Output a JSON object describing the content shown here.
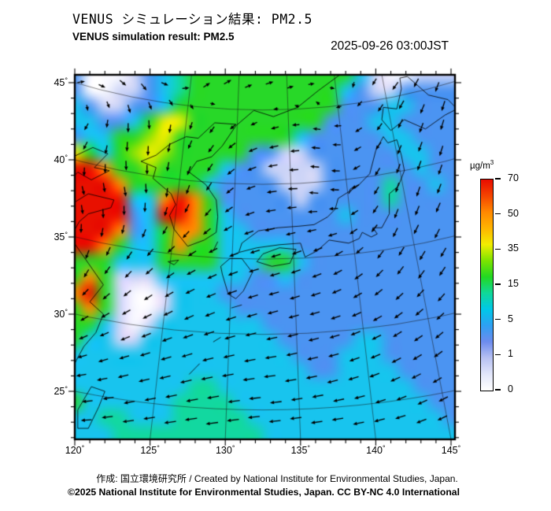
{
  "header": {
    "title_ja": "VENUS シミュレーション結果: PM2.5",
    "title_en": "VENUS simulation result: PM2.5",
    "timestamp": "2025-09-26 03:00JST"
  },
  "axes": {
    "lat_labels": [
      "45",
      "40",
      "35",
      "30",
      "25"
    ],
    "lon_labels": [
      "120",
      "125",
      "130",
      "135",
      "140",
      "145"
    ],
    "degree_symbol": "°"
  },
  "colorbar": {
    "unit_base": "µg/m",
    "unit_exp": "3",
    "tick_labels": [
      "70",
      "50",
      "35",
      "15",
      "5",
      "1",
      "0"
    ],
    "stops_bottom_to_top": [
      "#ffffff",
      "#e2e6fa",
      "#b7c1f2",
      "#6d8cee",
      "#2ea0f2",
      "#00c8e8",
      "#10d898",
      "#22d822",
      "#7ce400",
      "#f2ee00",
      "#ffb400",
      "#ff8800",
      "#f44400",
      "#e80c00"
    ]
  },
  "footer": {
    "line1": "作成: 国立環境研究所 / Created by National Institute for Environmental Studies, Japan.",
    "line2": "©2025 National Institute for Environmental Studies, Japan. CC BY-NC 4.0 International"
  },
  "chart_data": {
    "type": "heatmap",
    "title": "VENUS simulation result: PM2.5",
    "units": "µg/m3",
    "colorbar_values": [
      0,
      1,
      5,
      15,
      35,
      50,
      70
    ],
    "lon_range": [
      120,
      145.5
    ],
    "lat_range": [
      22,
      45.5
    ],
    "grid": {
      "lon_start": 120,
      "lon_step": 1,
      "lat_start": 45.5,
      "lat_step": -1,
      "level_values": {
        "W": 0.2,
        "L": 0.8,
        "P": 1.5,
        "B": 2.5,
        "C": 6,
        "T": 10,
        "G": 18,
        "H": 28,
        "Y": 40,
        "O": 55,
        "R": 72
      },
      "level_colors": {
        "W": "#fafaff",
        "L": "#ccd4f7",
        "P": "#8fa6f0",
        "B": "#4b94f2",
        "C": "#18c4ee",
        "T": "#12d8a0",
        "G": "#28d828",
        "H": "#9ce400",
        "Y": "#f4ee00",
        "O": "#ff8c00",
        "R": "#e81000"
      },
      "rows": [
        "BWWWLBCTGGGGGGGGGGGCLWWLLL",
        "BWWLLBCTGGGGGGGGGGCBLLBBBB",
        "CBLLBBCGGGGGGGGGGGBBBCCBBB",
        "CCBBCGYYGGGGGGGGGBBBCCBBBB",
        "BCCGGHYGGGGGGGGCBBBBBCCBBB",
        "YGCGHYHGGGGGBBLLBBBBBBCCBB",
        "RROGGHGGGGCBBLLLLBBBBBBCBB",
        "RRROGGGGGCBBBBLLLBBBBTBBCB",
        "RRRRCCOROGBBBBBLBBBBBTBBBB",
        "RRRRBCRROGCBBBBBBBCBBBBBBB",
        "RRROBCGOOGCCBBBBBBBBBBBBBB",
        "RROGCCGOGGCCCCCBBBBBBBBBBB",
        "GGGCCCGGGGCCCGGCBBBBBBBBBB",
        "GOGLLLCCCCCCBBCBBBBBBBBBBB",
        "ORGLWWLCCCBBBBBBBBBBBBBBBB",
        "GOGLWWLCCCCBBBBBBBBBBBBBBB",
        "GGCLWLCCCCCCCBBBBBBBBBBBBB",
        "GCCLLCCCCCCCCCBBBBBCCBBBBB",
        "CCCCCCCCCCCCCCCBBBCCCBBBBB",
        "CCCCCCCCCCCCCCCCBBCCCCBBBB",
        "CCCCCCCCTTCCCCCCCCCCCCCBBB",
        "GCCCCCCTTTTCCCCCCCCCCCCCBB",
        "CCTTCCCTTTTTCCCCCCCCCCCCCB",
        "CCCTTTTTTTTTTCCCCCCCCCCCCC"
      ]
    },
    "wind": {
      "lons": [
        120,
        124.17,
        128.33,
        132.5,
        136.67,
        140.83,
        145
      ],
      "lats": [
        45.5,
        41.6,
        37.7,
        33.8,
        29.9,
        26,
        22
      ],
      "uv": [
        [
          [
            5,
            2
          ],
          [
            4,
            -4
          ],
          [
            5,
            4
          ],
          [
            6,
            2
          ],
          [
            3,
            0
          ],
          [
            -4,
            -5
          ],
          [
            -2,
            -7
          ]
        ],
        [
          [
            -4,
            -4
          ],
          [
            0,
            -7
          ],
          [
            -3,
            -5
          ],
          [
            -6,
            -2
          ],
          [
            -5,
            1
          ],
          [
            -3,
            -6
          ],
          [
            -2,
            -8
          ]
        ],
        [
          [
            2,
            -6
          ],
          [
            1,
            -7
          ],
          [
            -3,
            -6
          ],
          [
            -7,
            -1
          ],
          [
            -6,
            1
          ],
          [
            -2,
            -7
          ],
          [
            -3,
            -7
          ]
        ],
        [
          [
            -2,
            -6
          ],
          [
            -4,
            -5
          ],
          [
            -6,
            -3
          ],
          [
            -7,
            -2
          ],
          [
            -6,
            -3
          ],
          [
            -4,
            -6
          ],
          [
            -4,
            -7
          ]
        ],
        [
          [
            -5,
            -3
          ],
          [
            -6,
            -3
          ],
          [
            -7,
            -3
          ],
          [
            -8,
            -2
          ],
          [
            -7,
            -2
          ],
          [
            -6,
            -4
          ],
          [
            -5,
            -5
          ]
        ],
        [
          [
            -7,
            -1
          ],
          [
            -8,
            -2
          ],
          [
            -9,
            -2
          ],
          [
            -9,
            -1
          ],
          [
            -8,
            -2
          ],
          [
            -7,
            -3
          ],
          [
            -6,
            -4
          ]
        ],
        [
          [
            -8,
            0
          ],
          [
            -9,
            -1
          ],
          [
            -10,
            -1
          ],
          [
            -9,
            -1
          ],
          [
            -9,
            -1
          ],
          [
            -8,
            -2
          ],
          [
            -7,
            -3
          ]
        ]
      ]
    },
    "graticule": {
      "lon_lines": [
        125,
        130,
        135,
        140,
        145
      ],
      "lat_lines": [
        25,
        30,
        35,
        40,
        45
      ]
    },
    "coastlines": [
      [
        [
          119.9,
          40.2
        ],
        [
          121.2,
          40.8
        ],
        [
          122.2,
          40.4
        ],
        [
          121.3,
          39.5
        ],
        [
          122.3,
          39.3
        ],
        [
          121.1,
          38.7
        ],
        [
          120.2,
          39.2
        ],
        [
          119.9,
          38.9
        ]
      ],
      [
        [
          119.9,
          37.2
        ],
        [
          120.9,
          37.8
        ],
        [
          122.6,
          37.4
        ],
        [
          122.4,
          36.9
        ],
        [
          120.9,
          36.5
        ],
        [
          120.3,
          36.0
        ],
        [
          119.9,
          35.3
        ]
      ],
      [
        [
          119.9,
          34.7
        ],
        [
          120.9,
          33.3
        ],
        [
          121.9,
          31.9
        ],
        [
          121.0,
          30.8
        ],
        [
          121.9,
          30.0
        ],
        [
          121.4,
          28.8
        ],
        [
          120.6,
          27.9
        ],
        [
          120.1,
          27.0
        ],
        [
          119.8,
          26.4
        ]
      ],
      [
        [
          124.4,
          39.9
        ],
        [
          125.4,
          39.5
        ],
        [
          125.2,
          38.8
        ],
        [
          126.4,
          37.8
        ],
        [
          126.7,
          37.1
        ],
        [
          126.3,
          36.4
        ],
        [
          126.6,
          35.5
        ],
        [
          127.5,
          34.4
        ],
        [
          128.6,
          34.8
        ],
        [
          129.4,
          35.3
        ],
        [
          129.5,
          36.3
        ],
        [
          129.4,
          37.4
        ],
        [
          128.7,
          38.4
        ],
        [
          127.6,
          39.2
        ],
        [
          128.1,
          39.9
        ],
        [
          129.1,
          40.2
        ],
        [
          129.8,
          40.9
        ],
        [
          130.7,
          42.2
        ]
      ],
      [
        [
          124.4,
          39.9
        ],
        [
          125.4,
          40.3
        ],
        [
          126.3,
          41.0
        ],
        [
          127.4,
          41.5
        ],
        [
          128.2,
          41.4
        ],
        [
          129.3,
          42.4
        ],
        [
          130.7,
          42.3
        ]
      ],
      [
        [
          130.7,
          42.2
        ],
        [
          131.9,
          43.2
        ],
        [
          133.2,
          42.8
        ],
        [
          134.8,
          43.4
        ],
        [
          136.2,
          44.5
        ],
        [
          137.6,
          45.5
        ]
      ],
      [
        [
          130.3,
          33.6
        ],
        [
          129.7,
          33.1
        ],
        [
          129.8,
          32.6
        ],
        [
          130.2,
          31.3
        ],
        [
          130.7,
          31.0
        ],
        [
          131.2,
          31.5
        ],
        [
          131.8,
          32.7
        ],
        [
          131.1,
          33.6
        ],
        [
          130.3,
          33.6
        ]
      ],
      [
        [
          132.1,
          33.4
        ],
        [
          133.1,
          33.1
        ],
        [
          134.3,
          33.3
        ],
        [
          134.7,
          34.2
        ],
        [
          133.6,
          34.3
        ],
        [
          132.5,
          33.9
        ],
        [
          132.1,
          33.4
        ]
      ],
      [
        [
          130.9,
          34.0
        ],
        [
          132.1,
          34.3
        ],
        [
          133.6,
          34.5
        ],
        [
          135.0,
          34.6
        ],
        [
          135.3,
          33.7
        ],
        [
          136.1,
          34.1
        ],
        [
          136.9,
          34.8
        ],
        [
          138.2,
          34.6
        ],
        [
          138.9,
          34.9
        ],
        [
          139.1,
          35.3
        ],
        [
          139.7,
          35.0
        ],
        [
          140.1,
          35.2
        ],
        [
          139.8,
          35.6
        ],
        [
          140.4,
          35.6
        ],
        [
          140.9,
          36.5
        ],
        [
          140.9,
          37.8
        ],
        [
          141.5,
          38.3
        ],
        [
          141.9,
          39.3
        ],
        [
          141.7,
          40.3
        ],
        [
          141.4,
          41.3
        ],
        [
          140.8,
          41.1
        ],
        [
          140.5,
          41.5
        ],
        [
          140.0,
          40.6
        ],
        [
          139.6,
          39.1
        ],
        [
          138.8,
          38.3
        ],
        [
          137.5,
          37.5
        ],
        [
          137.3,
          36.8
        ],
        [
          136.8,
          36.3
        ],
        [
          135.9,
          35.8
        ],
        [
          134.9,
          35.7
        ],
        [
          133.5,
          35.6
        ],
        [
          132.2,
          35.4
        ],
        [
          131.1,
          34.6
        ],
        [
          130.9,
          34.0
        ]
      ],
      [
        [
          140.4,
          42.6
        ],
        [
          141.0,
          41.9
        ],
        [
          141.9,
          42.6
        ],
        [
          143.3,
          42.0
        ],
        [
          144.6,
          42.9
        ],
        [
          145.4,
          43.3
        ],
        [
          144.8,
          43.9
        ],
        [
          143.5,
          44.2
        ],
        [
          142.1,
          45.4
        ],
        [
          141.6,
          45.3
        ],
        [
          141.7,
          44.6
        ],
        [
          141.4,
          43.3
        ],
        [
          140.5,
          43.4
        ],
        [
          140.4,
          42.6
        ]
      ],
      [
        [
          121.1,
          25.3
        ],
        [
          122.0,
          25.0
        ],
        [
          121.6,
          24.0
        ],
        [
          120.9,
          22.6
        ],
        [
          120.2,
          22.6
        ],
        [
          120.2,
          23.8
        ],
        [
          121.1,
          25.3
        ]
      ],
      [
        [
          126.2,
          33.4
        ],
        [
          126.9,
          33.5
        ],
        [
          126.6,
          33.2
        ],
        [
          126.2,
          33.4
        ]
      ],
      [
        [
          138.2,
          37.8
        ],
        [
          138.6,
          38.3
        ],
        [
          138.3,
          38.1
        ],
        [
          138.2,
          37.8
        ]
      ],
      [
        [
          129.2,
          34.1
        ],
        [
          129.5,
          34.7
        ]
      ],
      [
        [
          127.6,
          26.1
        ],
        [
          128.0,
          26.5
        ],
        [
          128.3,
          26.8
        ]
      ],
      [
        [
          129.2,
          28.2
        ],
        [
          129.7,
          28.5
        ]
      ],
      [
        [
          130.4,
          30.4
        ],
        [
          131.1,
          30.6
        ]
      ]
    ]
  }
}
